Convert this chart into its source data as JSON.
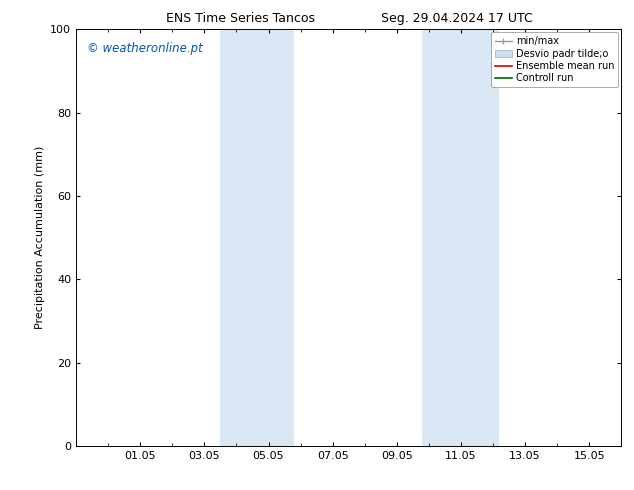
{
  "title_left": "ENS Time Series Tancos",
  "title_right": "Seg. 29.04.2024 17 UTC",
  "ylabel": "Precipitation Accumulation (mm)",
  "ylim": [
    0,
    100
  ],
  "yticks": [
    0,
    20,
    40,
    60,
    80,
    100
  ],
  "xtick_labels": [
    "01.05",
    "03.05",
    "05.05",
    "07.05",
    "09.05",
    "11.05",
    "13.05",
    "15.05"
  ],
  "xtick_positions": [
    2,
    4,
    6,
    8,
    10,
    12,
    14,
    16
  ],
  "xlim": [
    0,
    17
  ],
  "shaded_bands": [
    {
      "x_start": 4.5,
      "x_end": 5.2,
      "color": "#dae8f5"
    },
    {
      "x_start": 5.2,
      "x_end": 6.8,
      "color": "#dae8f5"
    },
    {
      "x_start": 10.8,
      "x_end": 11.5,
      "color": "#dae8f5"
    },
    {
      "x_start": 11.5,
      "x_end": 13.2,
      "color": "#dae8f5"
    }
  ],
  "legend_labels": [
    "min/max",
    "Desvio padr tilde;o",
    "Ensemble mean run",
    "Controll run"
  ],
  "legend_colors": [
    "#aaaaaa",
    "#ccddee",
    "#dd0000",
    "#006600"
  ],
  "watermark_text": "© weatheronline.pt",
  "watermark_color": "#0055bb",
  "background_color": "#ffffff",
  "title_fontsize": 9,
  "axis_label_fontsize": 8,
  "tick_fontsize": 8,
  "legend_fontsize": 7
}
